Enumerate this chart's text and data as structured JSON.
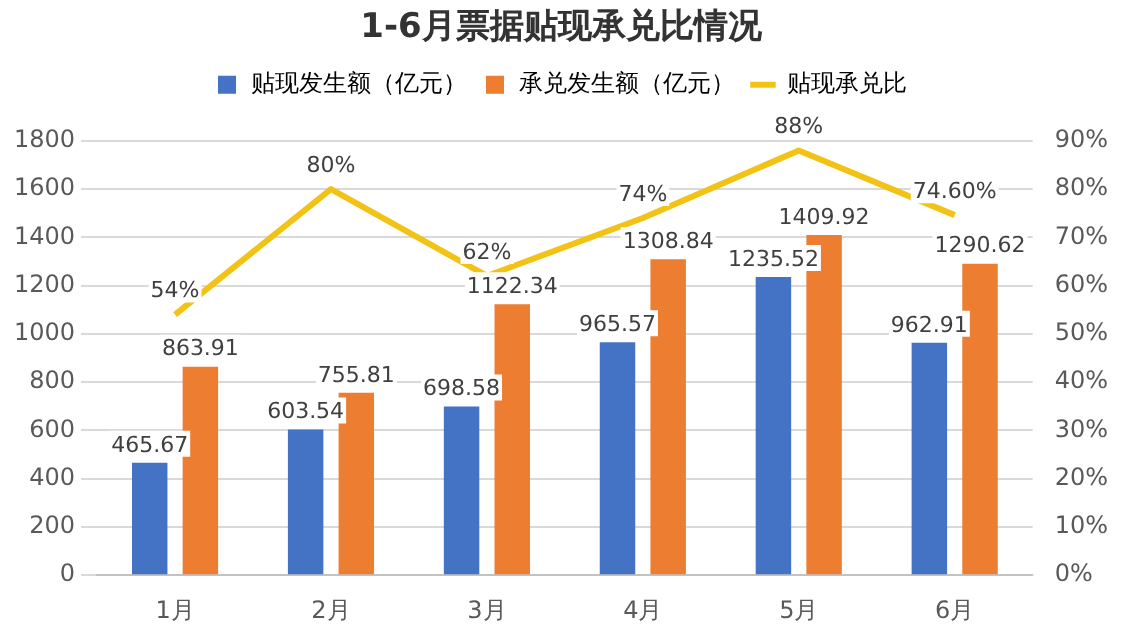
{
  "chart_data": {
    "type": "bar",
    "title": "1-6月票据贴现承兑比情况",
    "categories": [
      "1月",
      "2月",
      "3月",
      "4月",
      "5月",
      "6月"
    ],
    "series": [
      {
        "name": "贴现发生额（亿元）",
        "color": "#4472c4",
        "values": [
          465.67,
          603.54,
          698.58,
          965.57,
          1235.52,
          962.91
        ],
        "value_labels": [
          "465.67",
          "603.54",
          "698.58",
          "965.57",
          "1235.52",
          "962.91"
        ]
      },
      {
        "name": "承兑发生额（亿元）",
        "color": "#ed7d31",
        "values": [
          863.91,
          755.81,
          1122.34,
          1308.84,
          1409.92,
          1290.62
        ],
        "value_labels": [
          "863.91",
          "755.81",
          "1122.34",
          "1308.84",
          "1409.92",
          "1290.62"
        ]
      },
      {
        "name": "贴现承兑比",
        "type": "line",
        "axis": "y2",
        "color": "#f2c314",
        "values": [
          54,
          80,
          62,
          74,
          88,
          74.6
        ],
        "value_labels": [
          "54%",
          "80%",
          "62%",
          "74%",
          "88%",
          "74.60%"
        ]
      }
    ],
    "ylim": [
      0,
      1800
    ],
    "yticks": [
      0,
      200,
      400,
      600,
      800,
      1000,
      1200,
      1400,
      1600,
      1800
    ],
    "y2lim": [
      0,
      90
    ],
    "y2ticks": [
      {
        "value": 0,
        "label": "0%"
      },
      {
        "value": 10,
        "label": "10%"
      },
      {
        "value": 20,
        "label": "20%"
      },
      {
        "value": 30,
        "label": "30%"
      },
      {
        "value": 40,
        "label": "40%"
      },
      {
        "value": 50,
        "label": "50%"
      },
      {
        "value": 60,
        "label": "60%"
      },
      {
        "value": 70,
        "label": "70%"
      },
      {
        "value": 80,
        "label": "80%"
      },
      {
        "value": 90,
        "label": "90%"
      }
    ],
    "grid": "y",
    "legend": "top",
    "marker": "none"
  }
}
